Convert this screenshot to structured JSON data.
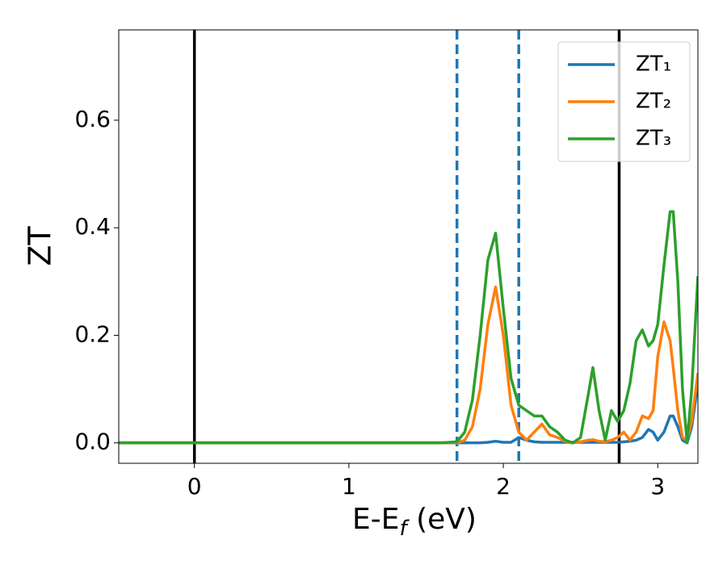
{
  "chart_data": {
    "type": "line",
    "xlabel": [
      "E-E",
      "f",
      " (eV)"
    ],
    "ylabel": "ZT",
    "x": [
      -0.49,
      1.6,
      1.7,
      1.75,
      1.8,
      1.85,
      1.9,
      1.95,
      2.0,
      2.05,
      2.1,
      2.15,
      2.2,
      2.25,
      2.3,
      2.35,
      2.4,
      2.45,
      2.5,
      2.55,
      2.58,
      2.62,
      2.66,
      2.7,
      2.74,
      2.78,
      2.82,
      2.86,
      2.9,
      2.94,
      2.97,
      3.0,
      3.04,
      3.08,
      3.1,
      3.13,
      3.16,
      3.19,
      3.22,
      3.26
    ],
    "series": [
      {
        "name": "ZT₁",
        "color": "#1f77b4",
        "values": [
          0,
          0,
          0,
          0,
          0,
          0,
          0.001,
          0.003,
          0.001,
          0.001,
          0.01,
          0.005,
          0.002,
          0.001,
          0.001,
          0.001,
          0.001,
          0.001,
          0.001,
          0.001,
          0.001,
          0.001,
          0.001,
          0.001,
          0.001,
          0.002,
          0.003,
          0.005,
          0.01,
          0.025,
          0.02,
          0.005,
          0.02,
          0.05,
          0.05,
          0.03,
          0.005,
          0,
          0.03,
          0.11
        ]
      },
      {
        "name": "ZT₂",
        "color": "#ff7f0e",
        "values": [
          0,
          0,
          0,
          0.005,
          0.03,
          0.1,
          0.22,
          0.29,
          0.2,
          0.07,
          0.02,
          0.005,
          0.02,
          0.035,
          0.015,
          0.01,
          0.003,
          0,
          0.002,
          0.005,
          0.006,
          0.003,
          0.002,
          0.005,
          0.01,
          0.02,
          0.005,
          0.02,
          0.05,
          0.045,
          0.06,
          0.16,
          0.225,
          0.19,
          0.14,
          0.06,
          0.01,
          0.005,
          0.04,
          0.13
        ]
      },
      {
        "name": "ZT₃",
        "color": "#2ca02c",
        "values": [
          0,
          0,
          0.002,
          0.02,
          0.08,
          0.2,
          0.34,
          0.39,
          0.25,
          0.12,
          0.07,
          0.06,
          0.05,
          0.05,
          0.03,
          0.02,
          0.005,
          0,
          0.01,
          0.09,
          0.14,
          0.06,
          0.005,
          0.06,
          0.04,
          0.06,
          0.11,
          0.19,
          0.21,
          0.18,
          0.19,
          0.22,
          0.33,
          0.43,
          0.43,
          0.3,
          0.1,
          0,
          0.1,
          0.31
        ]
      }
    ],
    "vlines": [
      {
        "x": 0,
        "color": "#000000",
        "style": "solid"
      },
      {
        "x": 2.75,
        "color": "#000000",
        "style": "solid"
      },
      {
        "x": 1.7,
        "color": "#1f77b4",
        "style": "dashed"
      },
      {
        "x": 2.1,
        "color": "#1f77b4",
        "style": "dashed"
      }
    ],
    "xlim": [
      -0.49,
      3.26
    ],
    "ylim": [
      -0.038,
      0.768
    ],
    "xticks": [
      0,
      1,
      2,
      3
    ],
    "yticks": [
      {
        "value": 0,
        "label": "0.0"
      },
      0.2,
      0.4,
      0.6
    ],
    "legend": "upper right"
  }
}
